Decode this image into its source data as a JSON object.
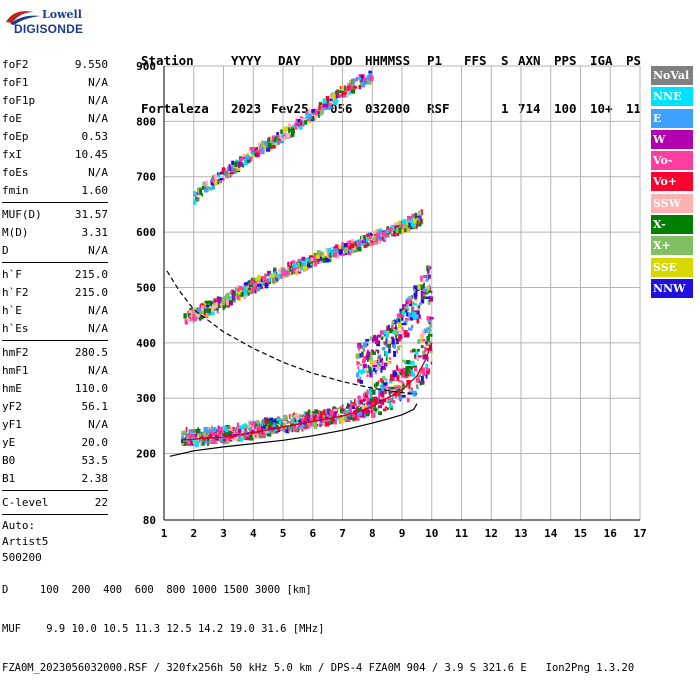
{
  "logo": {
    "top": "Lowell",
    "bottom": "DIGISONDE"
  },
  "header": {
    "labels": [
      "Station",
      "YYYY",
      "DAY",
      "DDD",
      "HHMMSS",
      "P1",
      "FFS",
      "S",
      "AXN",
      "PPS",
      "IGA",
      "PS"
    ],
    "values": [
      "Fortaleza",
      "2023",
      "Fev25",
      "056",
      "032000",
      "RSF",
      "",
      "1",
      "714",
      "100",
      "10+",
      "11"
    ]
  },
  "params": [
    {
      "group": [
        {
          "name": "foF2",
          "value": "9.550"
        },
        {
          "name": "foF1",
          "value": "N/A"
        },
        {
          "name": "foF1p",
          "value": "N/A"
        },
        {
          "name": "foE",
          "value": "N/A"
        },
        {
          "name": "foEp",
          "value": "0.53"
        },
        {
          "name": "fxI",
          "value": "10.45"
        },
        {
          "name": "foEs",
          "value": "N/A"
        },
        {
          "name": "fmin",
          "value": "1.60"
        }
      ]
    },
    {
      "group": [
        {
          "name": "MUF(D)",
          "value": "31.57"
        },
        {
          "name": "M(D)",
          "value": "3.31"
        },
        {
          "name": "D",
          "value": "N/A"
        }
      ]
    },
    {
      "group": [
        {
          "name": "h`F",
          "value": "215.0"
        },
        {
          "name": "h`F2",
          "value": "215.0"
        },
        {
          "name": "h`E",
          "value": "N/A"
        },
        {
          "name": "h`Es",
          "value": "N/A"
        }
      ]
    },
    {
      "group": [
        {
          "name": "hmF2",
          "value": "280.5"
        },
        {
          "name": "hmF1",
          "value": "N/A"
        },
        {
          "name": "hmE",
          "value": "110.0"
        },
        {
          "name": "yF2",
          "value": "56.1"
        },
        {
          "name": "yF1",
          "value": "N/A"
        },
        {
          "name": "yE",
          "value": "20.0"
        },
        {
          "name": "B0",
          "value": "53.5"
        },
        {
          "name": "B1",
          "value": "2.38"
        }
      ]
    },
    {
      "group": [
        {
          "name": "C-level",
          "value": "22"
        }
      ]
    }
  ],
  "auto": {
    "line1": "Auto:",
    "line2": "Artist5",
    "line3": "500200"
  },
  "legend": [
    {
      "label": "NoVal",
      "color": "#808080"
    },
    {
      "label": "NNE",
      "color": "#00e0ff"
    },
    {
      "label": "E",
      "color": "#3ea0ff"
    },
    {
      "label": "W",
      "color": "#b000b0"
    },
    {
      "label": "Vo-",
      "color": "#ff3ca0"
    },
    {
      "label": "Vo+",
      "color": "#ff0030"
    },
    {
      "label": "SSW",
      "color": "#ffb0b0"
    },
    {
      "label": "X-",
      "color": "#008000"
    },
    {
      "label": "X+",
      "color": "#80c060"
    },
    {
      "label": "SSE",
      "color": "#d8d800"
    },
    {
      "label": "NNW",
      "color": "#2010e0"
    }
  ],
  "chart_data": {
    "type": "scatter",
    "xlim": [
      1,
      17
    ],
    "ylim": [
      80,
      900
    ],
    "x_ticks": [
      1,
      2,
      3,
      4,
      5,
      6,
      7,
      8,
      9,
      10,
      11,
      12,
      13,
      14,
      15,
      16,
      17
    ],
    "y_ticks": [
      80,
      200,
      300,
      400,
      500,
      600,
      700,
      800,
      900
    ],
    "grid": true,
    "traces": [
      {
        "name": "F2 trace",
        "points": [
          [
            1.6,
            225
          ],
          [
            2,
            226
          ],
          [
            3,
            230
          ],
          [
            4,
            238
          ],
          [
            5,
            248
          ],
          [
            6,
            258
          ],
          [
            7,
            268
          ],
          [
            7.5,
            275
          ],
          [
            8,
            285
          ],
          [
            8.5,
            300
          ],
          [
            9,
            315
          ],
          [
            9.5,
            340
          ],
          [
            9.8,
            370
          ],
          [
            10,
            400
          ]
        ]
      },
      {
        "name": "F2 second hop",
        "points": [
          [
            1.7,
            440
          ],
          [
            3,
            470
          ],
          [
            4,
            500
          ],
          [
            5,
            525
          ],
          [
            6,
            545
          ],
          [
            7,
            565
          ],
          [
            8,
            585
          ],
          [
            9,
            605
          ],
          [
            9.7,
            625
          ]
        ]
      },
      {
        "name": "F2 third hop",
        "points": [
          [
            2,
            660
          ],
          [
            3,
            700
          ],
          [
            4,
            740
          ],
          [
            5,
            770
          ],
          [
            6,
            810
          ],
          [
            7,
            850
          ],
          [
            8,
            880
          ]
        ]
      },
      {
        "name": "spread F",
        "points": [
          [
            7.5,
            350
          ],
          [
            8.5,
            380
          ],
          [
            9,
            420
          ],
          [
            9.5,
            460
          ],
          [
            10,
            500
          ]
        ]
      }
    ],
    "profile_curves": [
      {
        "name": "true height profile",
        "style": "solid",
        "points": [
          [
            1.2,
            195
          ],
          [
            2,
            205
          ],
          [
            3,
            212
          ],
          [
            4,
            218
          ],
          [
            5,
            224
          ],
          [
            6,
            232
          ],
          [
            7,
            242
          ],
          [
            8,
            255
          ],
          [
            8.5,
            262
          ],
          [
            9,
            270
          ],
          [
            9.4,
            280
          ],
          [
            9.5,
            290
          ]
        ]
      },
      {
        "name": "MUF curve",
        "style": "dashed",
        "points": [
          [
            1.1,
            530
          ],
          [
            1.5,
            495
          ],
          [
            2,
            460
          ],
          [
            3,
            420
          ],
          [
            4,
            390
          ],
          [
            5,
            365
          ],
          [
            6,
            345
          ],
          [
            7,
            330
          ],
          [
            8,
            318
          ],
          [
            9,
            310
          ],
          [
            9.5,
            308
          ]
        ]
      }
    ]
  },
  "footer": {
    "line1": "D     100  200  400  600  800 1000 1500 3000 [km]",
    "line2": "MUF    9.9 10.0 10.5 11.3 12.5 14.2 19.0 31.6 [MHz]",
    "line3": "FZA0M_2023056032000.RSF / 320fx256h 50 kHz 5.0 km / DPS-4 FZA0M 904 / 3.9 S 321.6 E   Ion2Png 1.3.20"
  }
}
